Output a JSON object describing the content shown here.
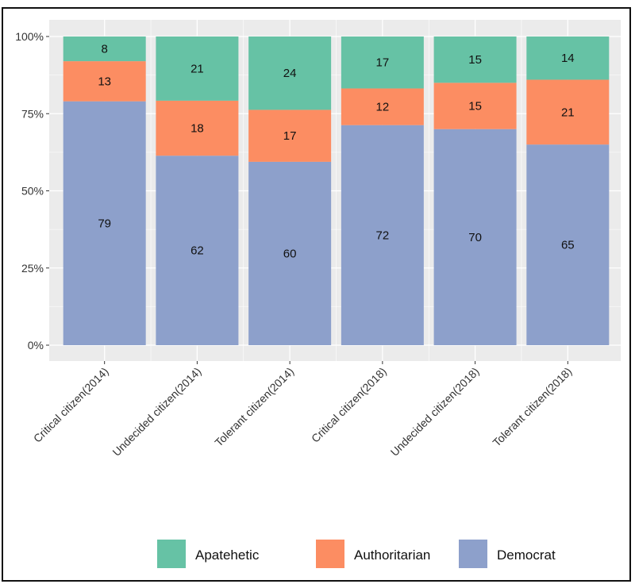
{
  "chart_data": {
    "type": "bar",
    "stacked": true,
    "percent": true,
    "categories": [
      "Critical citizen(2014)",
      "Undecided citizen(2014)",
      "Tolerant citizen(2014)",
      "Critical citizen(2018)",
      "Undecided citizen(2018)",
      "Tolerant citizen(2018)"
    ],
    "series": [
      {
        "name": "Democrat",
        "color": "#8DA0CB",
        "values": [
          79,
          62,
          60,
          72,
          70,
          65
        ]
      },
      {
        "name": "Authoritarian",
        "color": "#FC8D62",
        "values": [
          13,
          18,
          17,
          12,
          15,
          21
        ]
      },
      {
        "name": "Apatehetic",
        "color": "#66C2A5",
        "values": [
          8,
          21,
          24,
          17,
          15,
          14
        ]
      }
    ],
    "legend_order": [
      "Apatehetic",
      "Authoritarian",
      "Democrat"
    ],
    "yticks": [
      "0%",
      "25%",
      "50%",
      "75%",
      "100%"
    ],
    "ylim": [
      0,
      100
    ],
    "grid": true,
    "legend_position": "bottom",
    "panel_background": "#EBEBEB"
  }
}
